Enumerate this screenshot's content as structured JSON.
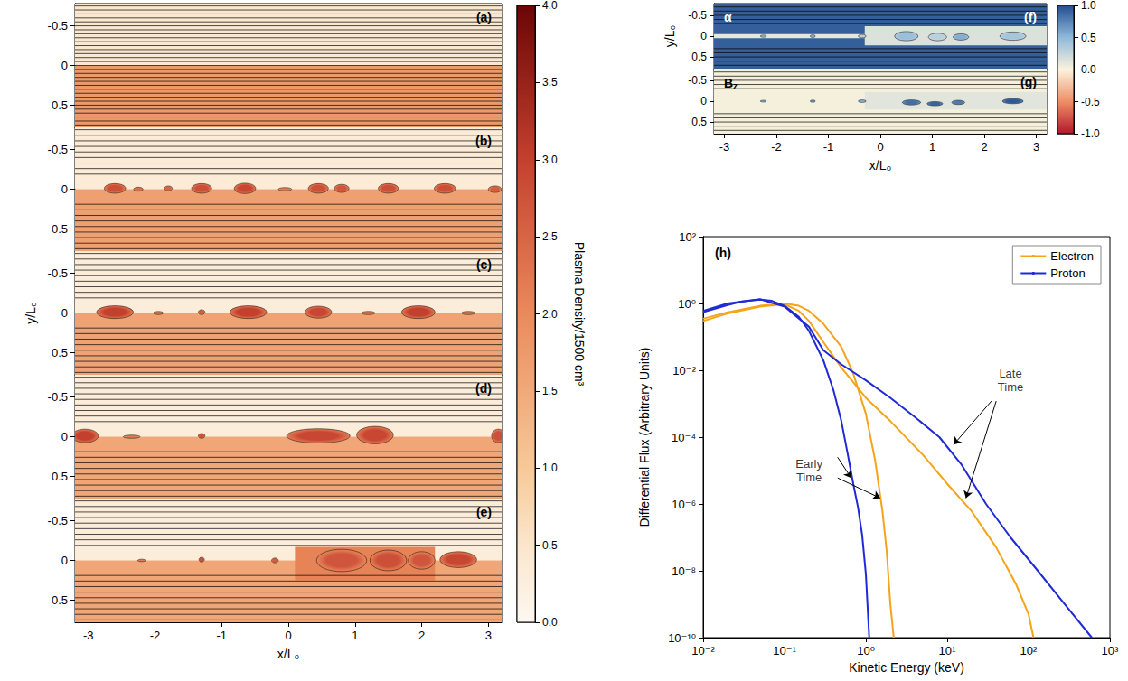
{
  "chart_data": [
    {
      "type": "map",
      "title": "(a)",
      "tick_labels": "y",
      "xlim": [
        -3.2,
        3.2
      ],
      "xticks": [
        -3,
        -2,
        -1,
        0,
        1,
        2,
        3
      ],
      "ylim": [
        0.78,
        -0.78
      ],
      "yticks": [
        -0.5,
        0,
        0.5
      ],
      "regions": [
        {
          "x": [
            -3.2,
            3.2
          ],
          "y": [
            -0.78,
            0
          ],
          "value": 0.45
        },
        {
          "x": [
            -3.2,
            3.2
          ],
          "y": [
            0,
            0.78
          ],
          "value": 1.75
        }
      ],
      "plasmoids": [],
      "field_lines": [
        -0.75,
        -0.7,
        -0.65,
        -0.6,
        -0.55,
        -0.5,
        -0.45,
        -0.4,
        -0.35,
        -0.3,
        -0.25,
        -0.2,
        -0.15,
        -0.1,
        -0.05,
        0,
        0.05,
        0.1,
        0.15,
        0.2,
        0.25,
        0.3,
        0.35,
        0.4,
        0.45,
        0.5,
        0.55,
        0.6,
        0.65,
        0.7,
        0.75
      ]
    },
    {
      "type": "map",
      "title": "(b)",
      "tick_labels": "y",
      "xlim": [
        -3.2,
        3.2
      ],
      "xticks": [
        -3,
        -2,
        -1,
        0,
        1,
        2,
        3
      ],
      "ylim": [
        0.78,
        -0.78
      ],
      "yticks": [
        -0.5,
        0,
        0.5
      ],
      "regions": [
        {
          "x": [
            -3.2,
            3.2
          ],
          "y": [
            -0.78,
            0
          ],
          "value": 0.35
        },
        {
          "x": [
            -3.2,
            3.2
          ],
          "y": [
            0,
            0.78
          ],
          "value": 1.65
        }
      ],
      "plasmoids": [
        {
          "x": -2.6,
          "y": -0.01,
          "w": 0.32,
          "h": 0.12,
          "value": 2.8
        },
        {
          "x": -2.25,
          "y": 0,
          "w": 0.14,
          "h": 0.05,
          "value": 2.4
        },
        {
          "x": -1.8,
          "y": -0.01,
          "w": 0.12,
          "h": 0.06,
          "value": 2.5
        },
        {
          "x": -1.3,
          "y": -0.01,
          "w": 0.3,
          "h": 0.12,
          "value": 2.8
        },
        {
          "x": -0.65,
          "y": -0.01,
          "w": 0.32,
          "h": 0.13,
          "value": 2.9
        },
        {
          "x": -0.05,
          "y": 0,
          "w": 0.2,
          "h": 0.04,
          "value": 2.2
        },
        {
          "x": 0.45,
          "y": -0.01,
          "w": 0.3,
          "h": 0.12,
          "value": 2.8
        },
        {
          "x": 0.8,
          "y": -0.01,
          "w": 0.22,
          "h": 0.1,
          "value": 2.7
        },
        {
          "x": 1.5,
          "y": -0.01,
          "w": 0.3,
          "h": 0.12,
          "value": 2.8
        },
        {
          "x": 2.35,
          "y": -0.01,
          "w": 0.32,
          "h": 0.12,
          "value": 2.8
        },
        {
          "x": 3.1,
          "y": 0,
          "w": 0.2,
          "h": 0.08,
          "value": 2.6
        }
      ],
      "field_lines": [
        -0.75,
        -0.68,
        -0.61,
        -0.54,
        -0.47,
        -0.4,
        -0.33,
        -0.26,
        -0.19,
        0.19,
        0.26,
        0.33,
        0.4,
        0.47,
        0.54,
        0.61,
        0.68,
        0.75
      ]
    },
    {
      "type": "map",
      "title": "(c)",
      "tick_labels": "y",
      "ylabel": "y/L₀",
      "xlim": [
        -3.2,
        3.2
      ],
      "xticks": [
        -3,
        -2,
        -1,
        0,
        1,
        2,
        3
      ],
      "ylim": [
        0.78,
        -0.78
      ],
      "yticks": [
        -0.5,
        0,
        0.5
      ],
      "regions": [
        {
          "x": [
            -3.2,
            3.2
          ],
          "y": [
            -0.78,
            0
          ],
          "value": 0.3
        },
        {
          "x": [
            -3.2,
            3.2
          ],
          "y": [
            0,
            0.78
          ],
          "value": 1.6
        }
      ],
      "plasmoids": [
        {
          "x": -2.6,
          "y": -0.01,
          "w": 0.55,
          "h": 0.16,
          "value": 3.0
        },
        {
          "x": -1.95,
          "y": 0,
          "w": 0.15,
          "h": 0.04,
          "value": 2.2
        },
        {
          "x": -1.3,
          "y": -0.01,
          "w": 0.1,
          "h": 0.06,
          "value": 2.6
        },
        {
          "x": -0.6,
          "y": -0.01,
          "w": 0.55,
          "h": 0.16,
          "value": 3.0
        },
        {
          "x": 0.45,
          "y": -0.01,
          "w": 0.4,
          "h": 0.15,
          "value": 2.9
        },
        {
          "x": 1.2,
          "y": 0,
          "w": 0.2,
          "h": 0.04,
          "value": 2.2
        },
        {
          "x": 1.95,
          "y": -0.01,
          "w": 0.5,
          "h": 0.16,
          "value": 3.0
        },
        {
          "x": 2.7,
          "y": 0,
          "w": 0.2,
          "h": 0.04,
          "value": 2.2
        }
      ],
      "field_lines": [
        -0.75,
        -0.68,
        -0.61,
        -0.54,
        -0.47,
        -0.4,
        -0.33,
        -0.26,
        -0.19,
        0.19,
        0.26,
        0.33,
        0.4,
        0.47,
        0.54,
        0.61,
        0.68,
        0.75
      ]
    },
    {
      "type": "map",
      "title": "(d)",
      "tick_labels": "y",
      "xlim": [
        -3.2,
        3.2
      ],
      "xticks": [
        -3,
        -2,
        -1,
        0,
        1,
        2,
        3
      ],
      "ylim": [
        0.78,
        -0.78
      ],
      "yticks": [
        -0.5,
        0,
        0.5
      ],
      "regions": [
        {
          "x": [
            -3.2,
            3.2
          ],
          "y": [
            -0.78,
            0
          ],
          "value": 0.3
        },
        {
          "x": [
            -3.2,
            3.2
          ],
          "y": [
            0,
            0.78
          ],
          "value": 1.55
        }
      ],
      "plasmoids": [
        {
          "x": -3.05,
          "y": -0.01,
          "w": 0.4,
          "h": 0.17,
          "value": 3.0
        },
        {
          "x": -2.35,
          "y": 0,
          "w": 0.25,
          "h": 0.04,
          "value": 2.2
        },
        {
          "x": -1.3,
          "y": -0.01,
          "w": 0.1,
          "h": 0.06,
          "value": 2.8
        },
        {
          "x": 0.45,
          "y": -0.01,
          "w": 0.95,
          "h": 0.18,
          "value": 2.9
        },
        {
          "x": 1.3,
          "y": -0.02,
          "w": 0.55,
          "h": 0.22,
          "value": 2.9
        },
        {
          "x": 3.15,
          "y": -0.01,
          "w": 0.2,
          "h": 0.17,
          "value": 2.8
        }
      ],
      "field_lines": [
        -0.75,
        -0.68,
        -0.61,
        -0.54,
        -0.47,
        -0.4,
        -0.33,
        -0.26,
        -0.19,
        0.19,
        0.26,
        0.33,
        0.4,
        0.47,
        0.54,
        0.61,
        0.68,
        0.75
      ]
    },
    {
      "type": "map",
      "title": "(e)",
      "xlabel": "x/L₀",
      "xlim": [
        -3.2,
        3.2
      ],
      "xticks": [
        -3,
        -2,
        -1,
        0,
        1,
        2,
        3
      ],
      "ylim": [
        0.78,
        -0.78
      ],
      "yticks": [
        -0.5,
        0,
        0.5
      ],
      "regions": [
        {
          "x": [
            -3.2,
            3.2
          ],
          "y": [
            -0.78,
            0
          ],
          "value": 0.3
        },
        {
          "x": [
            -3.2,
            3.2
          ],
          "y": [
            0,
            0.78
          ],
          "value": 1.55
        },
        {
          "x": [
            0.1,
            2.2
          ],
          "y": [
            -0.17,
            0.25
          ],
          "value": 2.1
        }
      ],
      "plasmoids": [
        {
          "x": -2.2,
          "y": 0,
          "w": 0.12,
          "h": 0.03,
          "value": 2.2
        },
        {
          "x": -1.3,
          "y": -0.01,
          "w": 0.08,
          "h": 0.06,
          "value": 2.8
        },
        {
          "x": -0.2,
          "y": 0,
          "w": 0.1,
          "h": 0.06,
          "value": 2.6
        },
        {
          "x": 0.8,
          "y": 0,
          "w": 0.75,
          "h": 0.28,
          "value": 2.7
        },
        {
          "x": 1.5,
          "y": 0,
          "w": 0.55,
          "h": 0.26,
          "value": 2.8
        },
        {
          "x": 2.0,
          "y": 0,
          "w": 0.4,
          "h": 0.22,
          "value": 2.7
        },
        {
          "x": 2.55,
          "y": -0.01,
          "w": 0.55,
          "h": 0.2,
          "value": 2.9
        }
      ],
      "field_lines": [
        -0.75,
        -0.68,
        -0.61,
        -0.54,
        -0.47,
        -0.4,
        -0.33,
        -0.26,
        -0.19,
        0.19,
        0.26,
        0.33,
        0.4,
        0.47,
        0.54,
        0.61,
        0.68,
        0.75
      ]
    },
    {
      "type": "colorbar",
      "title": "Plasma Density/1500 cm³",
      "ylim": [
        0,
        4
      ],
      "yticks": [
        {
          "value": 0,
          "label": "0.0"
        },
        0.5,
        {
          "value": 1,
          "label": "1.0"
        },
        1.5,
        {
          "value": 2,
          "label": "2.0"
        },
        2.5,
        {
          "value": 3,
          "label": "3.0"
        },
        3.5,
        {
          "value": 4,
          "label": "4.0"
        }
      ]
    },
    {
      "type": "map",
      "title": "(f)",
      "annotation": "α",
      "tick_labels": "y",
      "ylabel": "y/L₀",
      "xlim": [
        -3.2,
        3.2
      ],
      "xticks": [
        -3,
        -2,
        -1,
        0,
        1,
        2,
        3
      ],
      "ylim": [
        0.78,
        -0.78
      ],
      "yticks": [
        -0.5,
        0,
        0.5
      ],
      "regions": [
        {
          "x": [
            -3.2,
            3.2
          ],
          "y": [
            -0.78,
            0.78
          ],
          "value": 0.92
        },
        {
          "x": [
            -3.2,
            -0.3
          ],
          "y": [
            -0.05,
            0.05
          ],
          "value": 0.1
        },
        {
          "x": [
            -0.3,
            3.2
          ],
          "y": [
            -0.24,
            0.22
          ],
          "value": 0.15
        }
      ],
      "plasmoids": [
        {
          "x": -2.25,
          "y": 0,
          "w": 0.12,
          "h": 0.05,
          "value": 0.4
        },
        {
          "x": -1.3,
          "y": 0,
          "w": 0.1,
          "h": 0.06,
          "value": 0.5
        },
        {
          "x": -0.35,
          "y": 0,
          "w": 0.15,
          "h": 0.08,
          "value": 0.3
        },
        {
          "x": 0.5,
          "y": 0,
          "w": 0.45,
          "h": 0.22,
          "value": 0.45
        },
        {
          "x": 1.1,
          "y": 0.02,
          "w": 0.35,
          "h": 0.18,
          "value": 0.3
        },
        {
          "x": 1.55,
          "y": 0.02,
          "w": 0.3,
          "h": 0.15,
          "value": 0.55
        },
        {
          "x": 2.55,
          "y": 0,
          "w": 0.5,
          "h": 0.2,
          "value": 0.4
        }
      ],
      "field_lines": [
        -0.7,
        -0.6,
        -0.5,
        -0.4,
        -0.3,
        0.3,
        0.4,
        0.5,
        0.6,
        0.7
      ]
    },
    {
      "type": "map",
      "title": "(g)",
      "annotation": "Bz",
      "xlabel": "x/L₀",
      "xlim": [
        -3.2,
        3.2
      ],
      "xticks": [
        -3,
        -2,
        -1,
        0,
        1,
        2,
        3
      ],
      "ylim": [
        0.78,
        -0.78
      ],
      "yticks": [
        -0.5,
        0,
        0.5
      ],
      "regions": [
        {
          "x": [
            -3.2,
            3.2
          ],
          "y": [
            -0.78,
            0.78
          ],
          "value": 0.03
        },
        {
          "x": [
            -0.3,
            3.2
          ],
          "y": [
            -0.22,
            0.2
          ],
          "value": 0.12
        }
      ],
      "plasmoids": [
        {
          "x": -2.25,
          "y": 0,
          "w": 0.12,
          "h": 0.04,
          "value": 0.45
        },
        {
          "x": -1.3,
          "y": 0,
          "w": 0.1,
          "h": 0.05,
          "value": 0.6
        },
        {
          "x": -0.35,
          "y": 0,
          "w": 0.15,
          "h": 0.06,
          "value": 0.5
        },
        {
          "x": 0.6,
          "y": 0.03,
          "w": 0.35,
          "h": 0.12,
          "value": 0.85
        },
        {
          "x": 1.05,
          "y": 0.06,
          "w": 0.3,
          "h": 0.1,
          "value": 0.9
        },
        {
          "x": 1.5,
          "y": 0.03,
          "w": 0.25,
          "h": 0.1,
          "value": 0.8
        },
        {
          "x": 2.55,
          "y": 0,
          "w": 0.4,
          "h": 0.12,
          "value": 0.95
        }
      ],
      "field_lines": [
        -0.7,
        -0.6,
        -0.5,
        -0.4,
        -0.3,
        0.3,
        0.4,
        0.5,
        0.6,
        0.7
      ]
    },
    {
      "type": "colorbar",
      "ylim": [
        -1,
        1
      ],
      "yticks": [
        {
          "value": -1,
          "label": "-1.0"
        },
        -0.5,
        {
          "value": 0,
          "label": "0.0"
        },
        0.5,
        {
          "value": 1,
          "label": "1.0"
        }
      ]
    },
    {
      "type": "line",
      "title": "(h)",
      "log": true,
      "legend": "upper right",
      "xlabel": "Kinetic Energy (keV)",
      "ylabel": "Differential Flux (Arbitrary Units)",
      "xlim": [
        0.01,
        1000
      ],
      "ylim": [
        1e-10,
        100
      ],
      "xticks": [
        {
          "value": 0.01,
          "label": "10⁻²"
        },
        {
          "value": 0.1,
          "label": "10⁻¹"
        },
        {
          "value": 1,
          "label": "10⁰"
        },
        {
          "value": 10,
          "label": "10¹"
        },
        {
          "value": 100,
          "label": "10²"
        },
        {
          "value": 1000,
          "label": "10³"
        }
      ],
      "yticks": [
        {
          "value": 1e-10,
          "label": "10⁻¹⁰"
        },
        {
          "value": 1e-08,
          "label": "10⁻⁸"
        },
        {
          "value": 1e-06,
          "label": "10⁻⁶"
        },
        {
          "value": 0.0001,
          "label": "10⁻⁴"
        },
        {
          "value": 0.01,
          "label": "10⁻²"
        },
        {
          "value": 1,
          "label": "10⁰"
        },
        {
          "value": 100,
          "label": "10²"
        }
      ],
      "series": [
        {
          "name": "Electron",
          "color": "#f5a31a",
          "x": [
            0.01,
            0.02,
            0.05,
            0.1,
            0.15,
            0.2,
            0.3,
            0.5,
            0.7,
            1,
            1.3,
            1.6,
            1.8,
            2,
            2.2
          ],
          "values": [
            0.35,
            0.55,
            0.85,
            1.0,
            0.85,
            0.6,
            0.25,
            0.05,
            0.008,
            0.0005,
            2e-05,
            6e-07,
            4e-08,
            1e-09,
            1e-10
          ]
        },
        {
          "name": "Electron",
          "color": "#f5a31a",
          "x": [
            0.01,
            0.02,
            0.05,
            0.1,
            0.15,
            0.2,
            0.3,
            0.5,
            1,
            2,
            5,
            10,
            20,
            40,
            70,
            100,
            115
          ],
          "values": [
            0.3,
            0.5,
            0.8,
            0.95,
            0.6,
            0.3,
            0.07,
            0.012,
            0.0015,
            0.0003,
            3e-05,
            4e-06,
            6e-07,
            5e-08,
            4e-09,
            5e-10,
            1e-10
          ]
        },
        {
          "name": "Proton",
          "color": "#1f2ad6",
          "x": [
            0.01,
            0.02,
            0.03,
            0.05,
            0.07,
            0.1,
            0.15,
            0.2,
            0.3,
            0.4,
            0.5,
            0.6,
            0.7,
            0.8,
            0.9,
            1,
            1.1
          ],
          "values": [
            0.55,
            0.9,
            1.15,
            1.3,
            1.2,
            0.85,
            0.4,
            0.15,
            0.02,
            0.0025,
            0.0003,
            3e-05,
            4e-06,
            8e-07,
            1.2e-07,
            8e-09,
            1e-10
          ]
        },
        {
          "name": "Proton",
          "color": "#1f2ad6",
          "x": [
            0.01,
            0.02,
            0.05,
            0.1,
            0.2,
            0.3,
            0.5,
            1,
            2,
            4,
            8,
            15,
            30,
            60,
            130,
            300,
            600
          ],
          "values": [
            0.6,
            1.0,
            1.35,
            0.8,
            0.2,
            0.04,
            0.015,
            0.005,
            0.0015,
            0.0004,
            0.0001,
            1.5e-05,
            1e-06,
            1e-07,
            1e-08,
            8e-10,
            1e-10
          ]
        }
      ],
      "annotations": [
        {
          "text": "Early Time",
          "x": 0.2,
          "y": 1e-05,
          "arrows": [
            {
              "from": [
                0.45,
                2.5e-05
              ],
              "to": [
                0.66,
                6e-06
              ]
            },
            {
              "from": [
                0.45,
                6e-06
              ],
              "to": [
                1.5,
                1.5e-06
              ]
            }
          ]
        },
        {
          "text": "Late Time",
          "x": 60,
          "y": 0.005,
          "arrows": [
            {
              "from": [
                35,
                0.0012
              ],
              "to": [
                12,
                6e-05
              ]
            },
            {
              "from": [
                40,
                0.0012
              ],
              "to": [
                17,
                1.5e-06
              ]
            }
          ]
        }
      ]
    }
  ]
}
